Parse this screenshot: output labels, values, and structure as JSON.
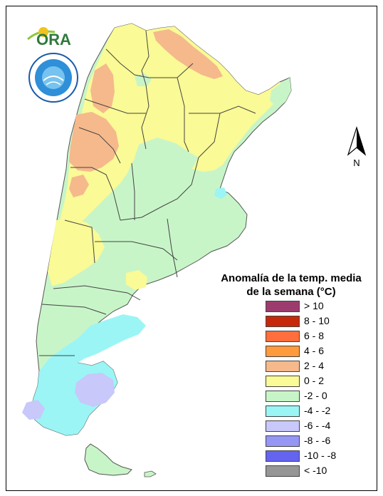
{
  "logo": {
    "ora_text": "ORA"
  },
  "north_arrow": {
    "label": "N"
  },
  "legend": {
    "title_line1": "Anomalía de la temp. media",
    "title_line2": "de la semana (°C)",
    "items": [
      {
        "label": "> 10",
        "color": "#9c3c6e"
      },
      {
        "label": "8 - 10",
        "color": "#c8280a"
      },
      {
        "label": "6 - 8",
        "color": "#ff6e3c"
      },
      {
        "label": "4 - 6",
        "color": "#ff9b3c"
      },
      {
        "label": "2 - 4",
        "color": "#f5b98c"
      },
      {
        "label": "0 - 2",
        "color": "#fafa96"
      },
      {
        "label": "-2 - 0",
        "color": "#c8f5c8"
      },
      {
        "label": "-4 - -2",
        "color": "#9bf5f5"
      },
      {
        "label": "-6 - -4",
        "color": "#c8c8fa"
      },
      {
        "label": "-8 - -6",
        "color": "#9696f5"
      },
      {
        "label": "-10 - -8",
        "color": "#6464f0"
      },
      {
        "label": "< -10",
        "color": "#969696"
      }
    ]
  },
  "map_colors": {
    "warm": "#f5b98c",
    "mild": "#fafa96",
    "cool": "#c8f5c8",
    "cold": "#9bf5f5",
    "colder": "#c8c8fa"
  }
}
